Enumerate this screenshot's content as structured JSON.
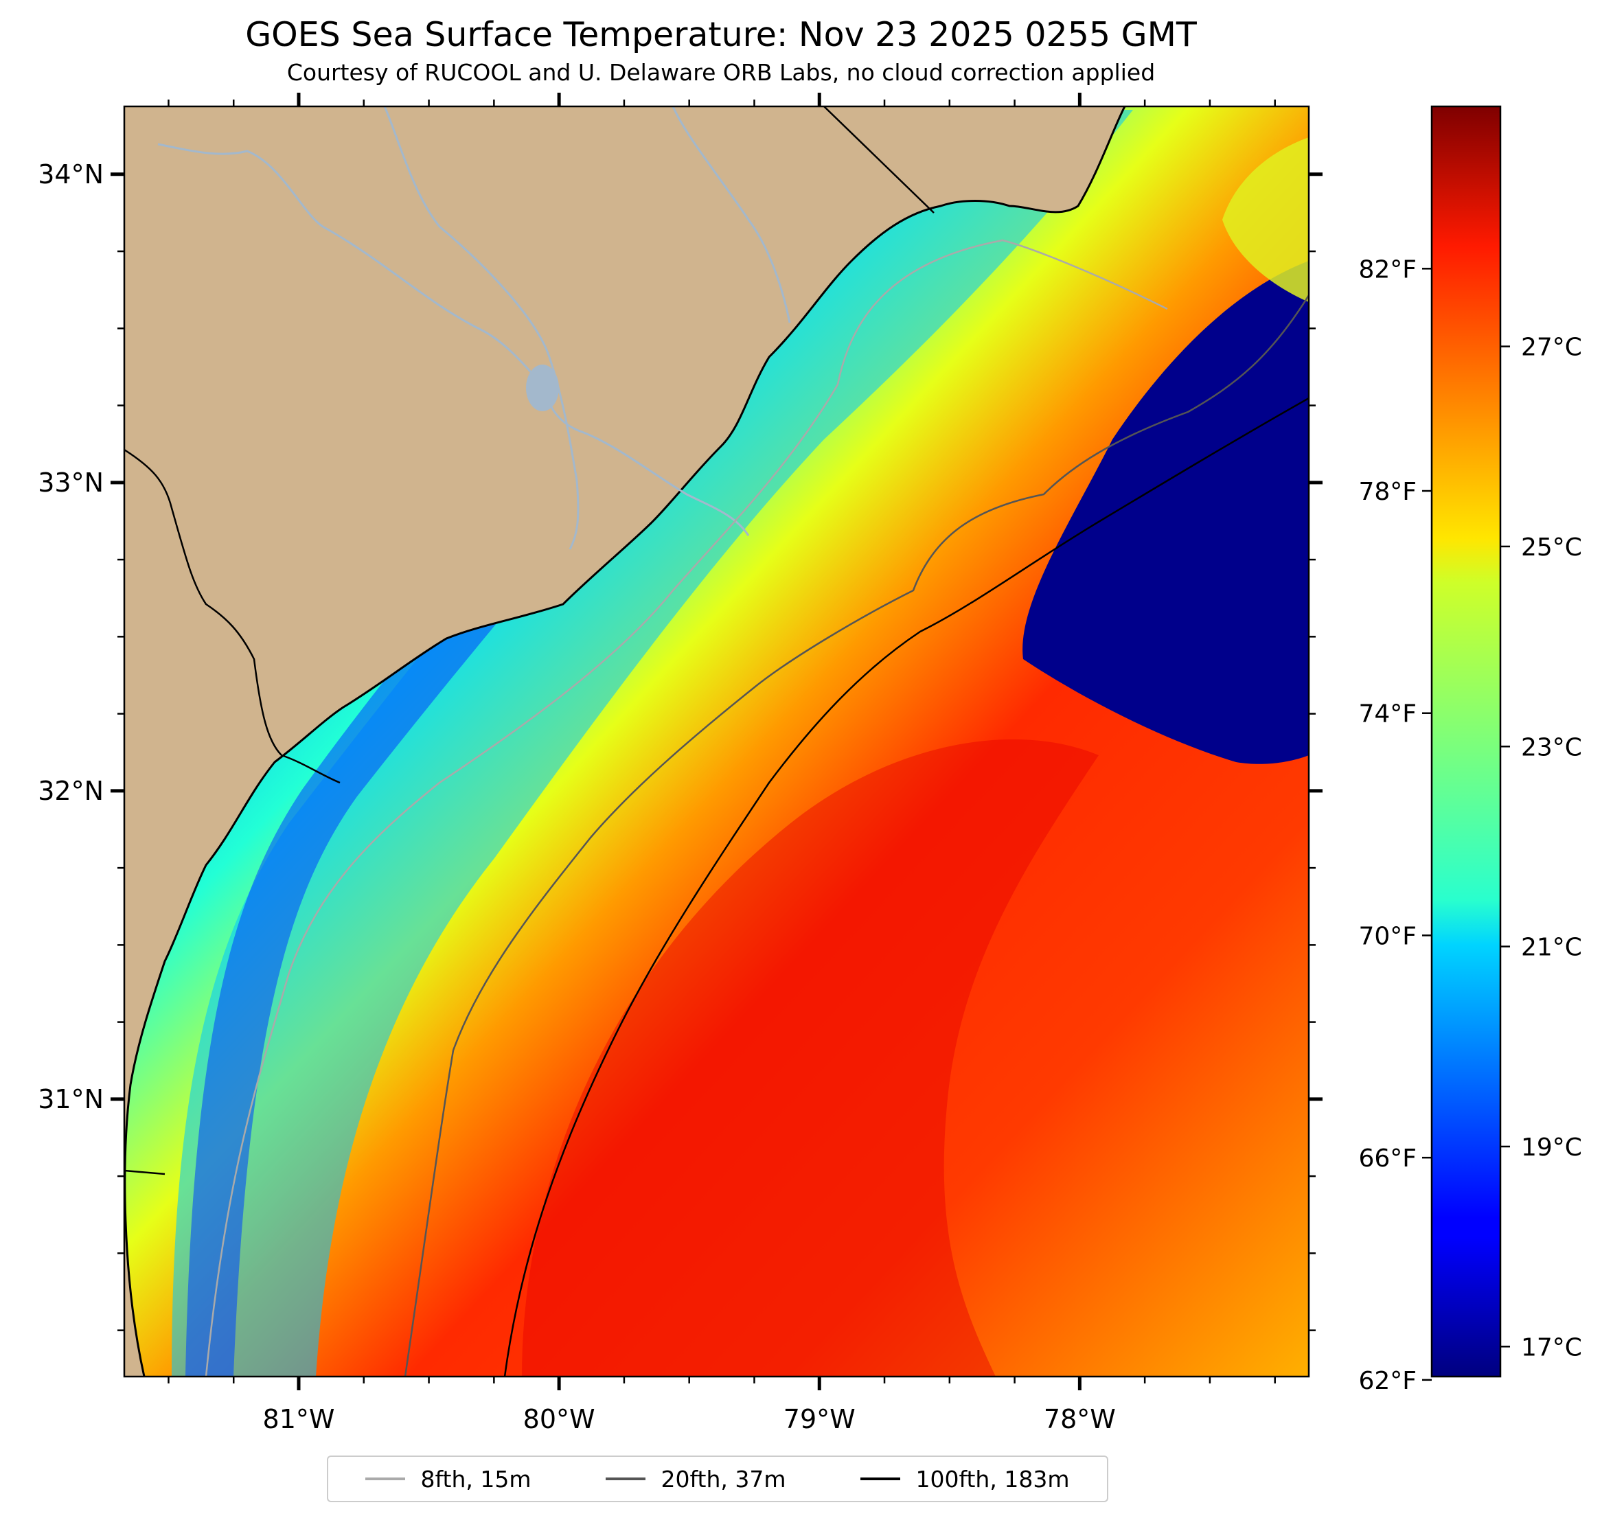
{
  "title": "GOES Sea Surface Temperature: Nov 23 2025 0255 GMT",
  "subtitle": "Courtesy of RUCOOL and U. Delaware ORB Labs, no cloud correction applied",
  "map": {
    "lon_range": [
      -81.67,
      -77.12
    ],
    "lat_range": [
      30.1,
      34.22
    ],
    "lat_ticks": [
      {
        "value": 34,
        "label": "34°N"
      },
      {
        "value": 33,
        "label": "33°N"
      },
      {
        "value": 32,
        "label": "32°N"
      },
      {
        "value": 31,
        "label": "31°N"
      }
    ],
    "lon_ticks": [
      {
        "value": -81,
        "label": "81°W"
      },
      {
        "value": -80,
        "label": "80°W"
      },
      {
        "value": -79,
        "label": "79°W"
      },
      {
        "value": -78,
        "label": "78°W"
      }
    ],
    "land_color": "#d0b48e",
    "river_color": "#a3b8cc"
  },
  "colorbar": {
    "colormap": "jet",
    "celsius_range": [
      16.7,
      29.4
    ],
    "fahrenheit_ticks": [
      {
        "value": 82,
        "label": "82°F"
      },
      {
        "value": 78,
        "label": "78°F"
      },
      {
        "value": 74,
        "label": "74°F"
      },
      {
        "value": 70,
        "label": "70°F"
      },
      {
        "value": 66,
        "label": "66°F"
      },
      {
        "value": 62,
        "label": "62°F"
      }
    ],
    "celsius_ticks": [
      {
        "value": 27,
        "label": "27°C"
      },
      {
        "value": 25,
        "label": "25°C"
      },
      {
        "value": 23,
        "label": "23°C"
      },
      {
        "value": 21,
        "label": "21°C"
      },
      {
        "value": 19,
        "label": "19°C"
      },
      {
        "value": 17,
        "label": "17°C"
      }
    ]
  },
  "legend": [
    {
      "label": "8fth, 15m",
      "color": "#aaaaaa"
    },
    {
      "label": "20fth, 37m",
      "color": "#555555"
    },
    {
      "label": "100fth, 183m",
      "color": "#000000"
    }
  ]
}
